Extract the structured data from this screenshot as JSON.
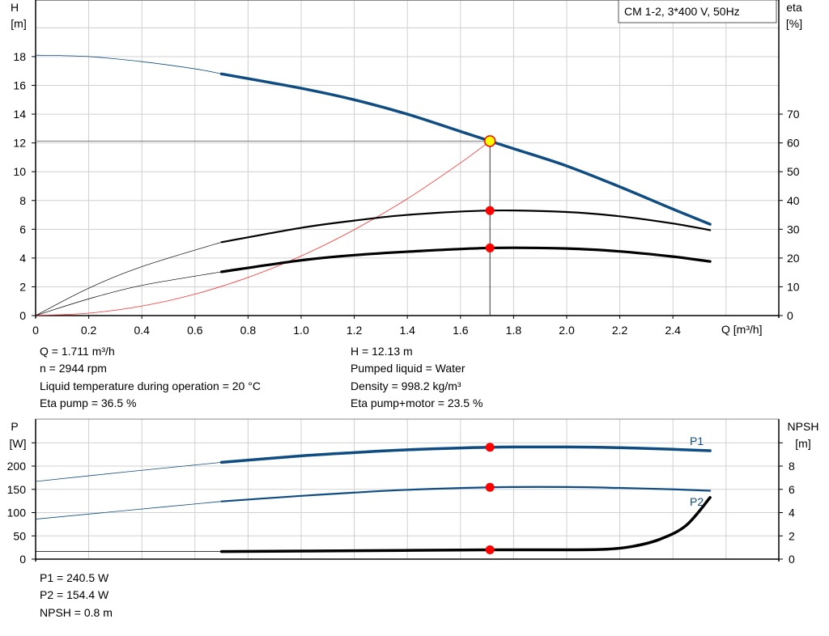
{
  "chart_data": [
    {
      "type": "line",
      "title": "CM 1-2, 3*400 V, 50Hz",
      "xlabel": "Q [m³/h]",
      "ylabel": "H\n[m]",
      "ylabel_top": "H",
      "ylabel_unit": "[m]",
      "y2label_top": "eta",
      "y2label_unit": "[%]",
      "xlim": [
        0,
        2.8
      ],
      "ylim": [
        0,
        20
      ],
      "y2lim": [
        0,
        100
      ],
      "xticks": [
        "0",
        "0.2",
        "0.4",
        "0.6",
        "0.8",
        "1.0",
        "1.2",
        "1.4",
        "1.6",
        "1.8",
        "2.0",
        "2.2",
        "2.4"
      ],
      "yticks": [
        "0",
        "2",
        "4",
        "6",
        "8",
        "10",
        "12",
        "14",
        "16",
        "18"
      ],
      "y2ticks": [
        "0",
        "10",
        "20",
        "30",
        "40",
        "50",
        "60",
        "70"
      ],
      "grid": true,
      "colors": {
        "head": "#0f4c81",
        "eta": "#000000",
        "system": "#ff3030",
        "point": "#ff0000",
        "duty_point": "#ffff00"
      },
      "series": [
        {
          "id": "head",
          "axis": "H",
          "points": [
            [
              0,
              18.1
            ],
            [
              0.2,
              18.0
            ],
            [
              0.4,
              17.65
            ],
            [
              0.6,
              17.15
            ],
            [
              0.7,
              16.8
            ],
            [
              1.0,
              15.8
            ],
            [
              1.2,
              15.0
            ],
            [
              1.4,
              14.0
            ],
            [
              1.6,
              12.8
            ],
            [
              1.711,
              12.13
            ],
            [
              1.8,
              11.6
            ],
            [
              2.0,
              10.4
            ],
            [
              2.2,
              8.95
            ],
            [
              2.4,
              7.4
            ],
            [
              2.54,
              6.35
            ]
          ]
        },
        {
          "id": "eta-pump",
          "axis": "eta",
          "points": [
            [
              0,
              0
            ],
            [
              0.2,
              9.5
            ],
            [
              0.4,
              17
            ],
            [
              0.7,
              25.5
            ],
            [
              1.0,
              30.5
            ],
            [
              1.2,
              33
            ],
            [
              1.4,
              35
            ],
            [
              1.711,
              36.5
            ],
            [
              2.0,
              36
            ],
            [
              2.2,
              34.5
            ],
            [
              2.4,
              32
            ],
            [
              2.54,
              29.7
            ]
          ]
        },
        {
          "id": "eta-pump-motor",
          "axis": "eta",
          "points": [
            [
              0,
              0
            ],
            [
              0.2,
              5.8
            ],
            [
              0.4,
              10.5
            ],
            [
              0.7,
              15.2
            ],
            [
              1.0,
              19.2
            ],
            [
              1.2,
              21
            ],
            [
              1.4,
              22.2
            ],
            [
              1.711,
              23.5
            ],
            [
              2.0,
              23.3
            ],
            [
              2.2,
              22.3
            ],
            [
              2.4,
              20.5
            ],
            [
              2.54,
              18.8
            ]
          ]
        },
        {
          "id": "system",
          "axis": "H",
          "points": [
            [
              0,
              0
            ],
            [
              0.2,
              0.17
            ],
            [
              0.4,
              0.66
            ],
            [
              0.6,
              1.49
            ],
            [
              0.8,
              2.65
            ],
            [
              1.0,
              4.14
            ],
            [
              1.2,
              5.97
            ],
            [
              1.4,
              8.12
            ],
            [
              1.6,
              10.61
            ],
            [
              1.711,
              12.13
            ]
          ]
        }
      ],
      "duty_point": {
        "Q": 1.711,
        "H": 12.13,
        "eta_pump": 36.5,
        "eta_pump_motor": 23.5
      },
      "info_left": [
        "Q = 1.711 m³/h",
        "n = 2944 rpm",
        "Liquid temperature during operation = 20 °C",
        "Eta pump = 36.5 %"
      ],
      "info_right": [
        "H = 12.13 m",
        "Pumped liquid = Water",
        "Density = 998.2 kg/m³",
        "Eta pump+motor = 23.5 %"
      ]
    },
    {
      "type": "line",
      "ylabel_top": "P",
      "ylabel_unit": "[W]",
      "y2label_top": "NPSH",
      "y2label_unit": "[m]",
      "xlim": [
        0,
        2.8
      ],
      "ylim": [
        0,
        300
      ],
      "y2lim": [
        0,
        12
      ],
      "yticks": [
        "0",
        "50",
        "100",
        "150",
        "200",
        ""
      ],
      "y2ticks": [
        "0",
        "2",
        "4",
        "6",
        "8",
        ""
      ],
      "grid": true,
      "series": [
        {
          "id": "P1",
          "name": "P1",
          "axis": "P",
          "points": [
            [
              0,
              167
            ],
            [
              0.35,
              188
            ],
            [
              0.7,
              208
            ],
            [
              1.0,
              222
            ],
            [
              1.2,
              229
            ],
            [
              1.4,
              235
            ],
            [
              1.711,
              240.5
            ],
            [
              2.0,
              241
            ],
            [
              2.2,
              239.5
            ],
            [
              2.4,
              236
            ],
            [
              2.54,
              233
            ]
          ]
        },
        {
          "id": "P2",
          "name": "P2",
          "axis": "P",
          "points": [
            [
              0,
              86
            ],
            [
              0.35,
              105
            ],
            [
              0.7,
              124
            ],
            [
              1.0,
              136
            ],
            [
              1.2,
              143
            ],
            [
              1.4,
              149
            ],
            [
              1.711,
              154.4
            ],
            [
              2.0,
              155
            ],
            [
              2.2,
              153
            ],
            [
              2.4,
              150
            ],
            [
              2.54,
              147
            ]
          ]
        },
        {
          "id": "NPSH",
          "axis": "NPSH",
          "points": [
            [
              0,
              0.65
            ],
            [
              0.7,
              0.65
            ],
            [
              1.2,
              0.72
            ],
            [
              1.711,
              0.8
            ],
            [
              2.0,
              0.8
            ],
            [
              2.15,
              0.85
            ],
            [
              2.25,
              1.1
            ],
            [
              2.35,
              1.7
            ],
            [
              2.45,
              2.9
            ],
            [
              2.54,
              5.3
            ]
          ]
        }
      ],
      "duty_point": {
        "P1": 240.5,
        "P2": 154.4,
        "NPSH": 0.8
      },
      "info": [
        "P1 = 240.5 W",
        "P2 = 154.4 W",
        "NPSH = 0.8 m"
      ]
    }
  ]
}
